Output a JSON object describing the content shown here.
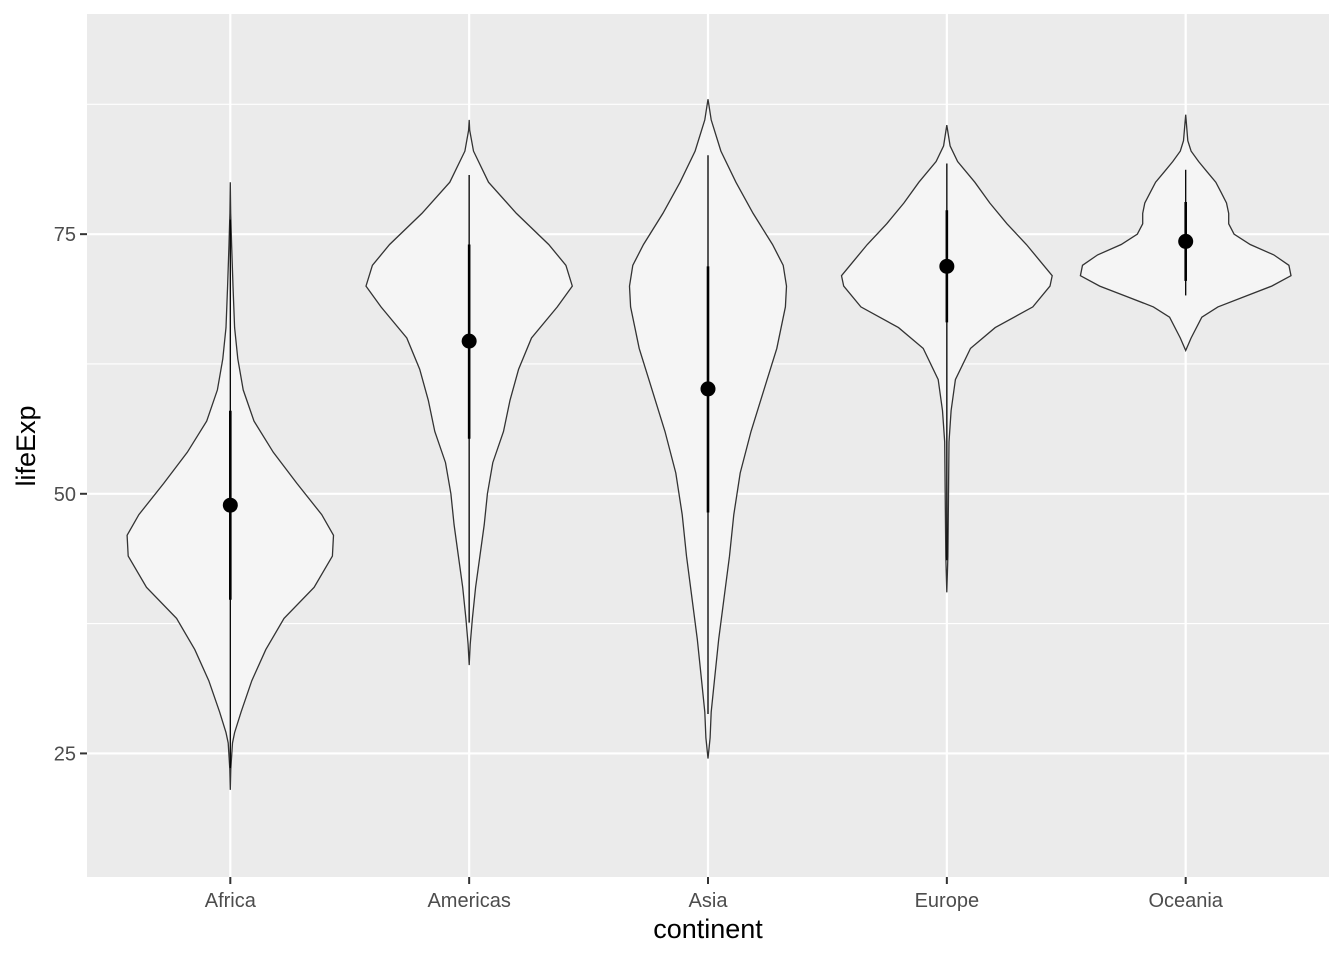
{
  "chart_data": {
    "type": "violin",
    "title": "",
    "xlabel": "continent",
    "ylabel": "lifeExp",
    "categories": [
      "Africa",
      "Americas",
      "Asia",
      "Europe",
      "Oceania"
    ],
    "ylim": [
      13.1,
      96.2
    ],
    "y_ticks": [
      25,
      50,
      75
    ],
    "grid": true,
    "legend": "none",
    "colors": {
      "panel": "#ebebeb",
      "grid": "#ffffff",
      "violin_fill": "#f5f5f5",
      "violin_stroke": "#333333",
      "point": "#000000"
    },
    "summary": [
      {
        "continent": "Africa",
        "mean": 48.9,
        "lower": 39.8,
        "upper": 58.0,
        "min": 23.6,
        "max": 76.4
      },
      {
        "continent": "Americas",
        "mean": 64.7,
        "lower": 55.3,
        "upper": 74.0,
        "min": 37.6,
        "max": 80.7
      },
      {
        "continent": "Asia",
        "mean": 60.1,
        "lower": 48.2,
        "upper": 71.9,
        "min": 28.8,
        "max": 82.6
      },
      {
        "continent": "Europe",
        "mean": 71.9,
        "lower": 66.5,
        "upper": 77.3,
        "min": 43.6,
        "max": 81.8
      },
      {
        "continent": "Oceania",
        "mean": 74.3,
        "lower": 70.5,
        "upper": 78.1,
        "min": 69.1,
        "max": 81.2
      }
    ],
    "violins": [
      {
        "continent": "Africa",
        "density": [
          [
            21.5,
            0.0
          ],
          [
            23.5,
            0.005
          ],
          [
            26,
            0.02
          ],
          [
            27,
            0.04
          ],
          [
            29,
            0.1
          ],
          [
            32,
            0.2
          ],
          [
            35,
            0.33
          ],
          [
            38,
            0.5
          ],
          [
            41,
            0.78
          ],
          [
            44,
            0.95
          ],
          [
            46,
            0.96
          ],
          [
            48,
            0.85
          ],
          [
            51,
            0.62
          ],
          [
            54,
            0.4
          ],
          [
            57,
            0.22
          ],
          [
            60,
            0.12
          ],
          [
            63,
            0.07
          ],
          [
            66,
            0.04
          ],
          [
            70,
            0.025
          ],
          [
            74,
            0.012
          ],
          [
            77,
            0.004
          ],
          [
            80,
            0.0
          ]
        ]
      },
      {
        "continent": "Americas",
        "density": [
          [
            33.5,
            0.0
          ],
          [
            35.5,
            0.01
          ],
          [
            38,
            0.03
          ],
          [
            41,
            0.06
          ],
          [
            44,
            0.1
          ],
          [
            47,
            0.14
          ],
          [
            50,
            0.17
          ],
          [
            53,
            0.22
          ],
          [
            56,
            0.32
          ],
          [
            59,
            0.38
          ],
          [
            62,
            0.46
          ],
          [
            65,
            0.58
          ],
          [
            68,
            0.82
          ],
          [
            70,
            0.96
          ],
          [
            72,
            0.9
          ],
          [
            74,
            0.74
          ],
          [
            77,
            0.44
          ],
          [
            80,
            0.18
          ],
          [
            83,
            0.04
          ],
          [
            85,
            0.005
          ],
          [
            86,
            0.0
          ]
        ]
      },
      {
        "continent": "Asia",
        "density": [
          [
            24.5,
            0.0
          ],
          [
            26.5,
            0.02
          ],
          [
            29,
            0.03
          ],
          [
            32,
            0.06
          ],
          [
            36,
            0.1
          ],
          [
            40,
            0.15
          ],
          [
            44,
            0.2
          ],
          [
            48,
            0.24
          ],
          [
            52,
            0.3
          ],
          [
            56,
            0.4
          ],
          [
            60,
            0.52
          ],
          [
            64,
            0.64
          ],
          [
            68,
            0.72
          ],
          [
            70,
            0.73
          ],
          [
            72,
            0.7
          ],
          [
            74,
            0.6
          ],
          [
            77,
            0.42
          ],
          [
            80,
            0.26
          ],
          [
            83,
            0.12
          ],
          [
            86,
            0.03
          ],
          [
            88,
            0.0
          ]
        ]
      },
      {
        "continent": "Europe",
        "density": [
          [
            40.5,
            0.0
          ],
          [
            44,
            0.01
          ],
          [
            50,
            0.015
          ],
          [
            55,
            0.02
          ],
          [
            58,
            0.04
          ],
          [
            61,
            0.08
          ],
          [
            64,
            0.22
          ],
          [
            66,
            0.45
          ],
          [
            68,
            0.8
          ],
          [
            70,
            0.96
          ],
          [
            71,
            0.98
          ],
          [
            72,
            0.9
          ],
          [
            74,
            0.74
          ],
          [
            76,
            0.56
          ],
          [
            78,
            0.4
          ],
          [
            80,
            0.26
          ],
          [
            82,
            0.1
          ],
          [
            83.5,
            0.03
          ],
          [
            85.5,
            0.0
          ]
        ]
      },
      {
        "continent": "Oceania",
        "density": [
          [
            63.8,
            0.0
          ],
          [
            65,
            0.05
          ],
          [
            67,
            0.15
          ],
          [
            68,
            0.3
          ],
          [
            69,
            0.55
          ],
          [
            70,
            0.8
          ],
          [
            71,
            0.98
          ],
          [
            72,
            0.96
          ],
          [
            73,
            0.82
          ],
          [
            74,
            0.6
          ],
          [
            75,
            0.45
          ],
          [
            76,
            0.4
          ],
          [
            77,
            0.4
          ],
          [
            78,
            0.38
          ],
          [
            79,
            0.33
          ],
          [
            80,
            0.28
          ],
          [
            81,
            0.2
          ],
          [
            82,
            0.12
          ],
          [
            83,
            0.05
          ],
          [
            84,
            0.02
          ],
          [
            86.5,
            0.0
          ]
        ]
      }
    ]
  }
}
